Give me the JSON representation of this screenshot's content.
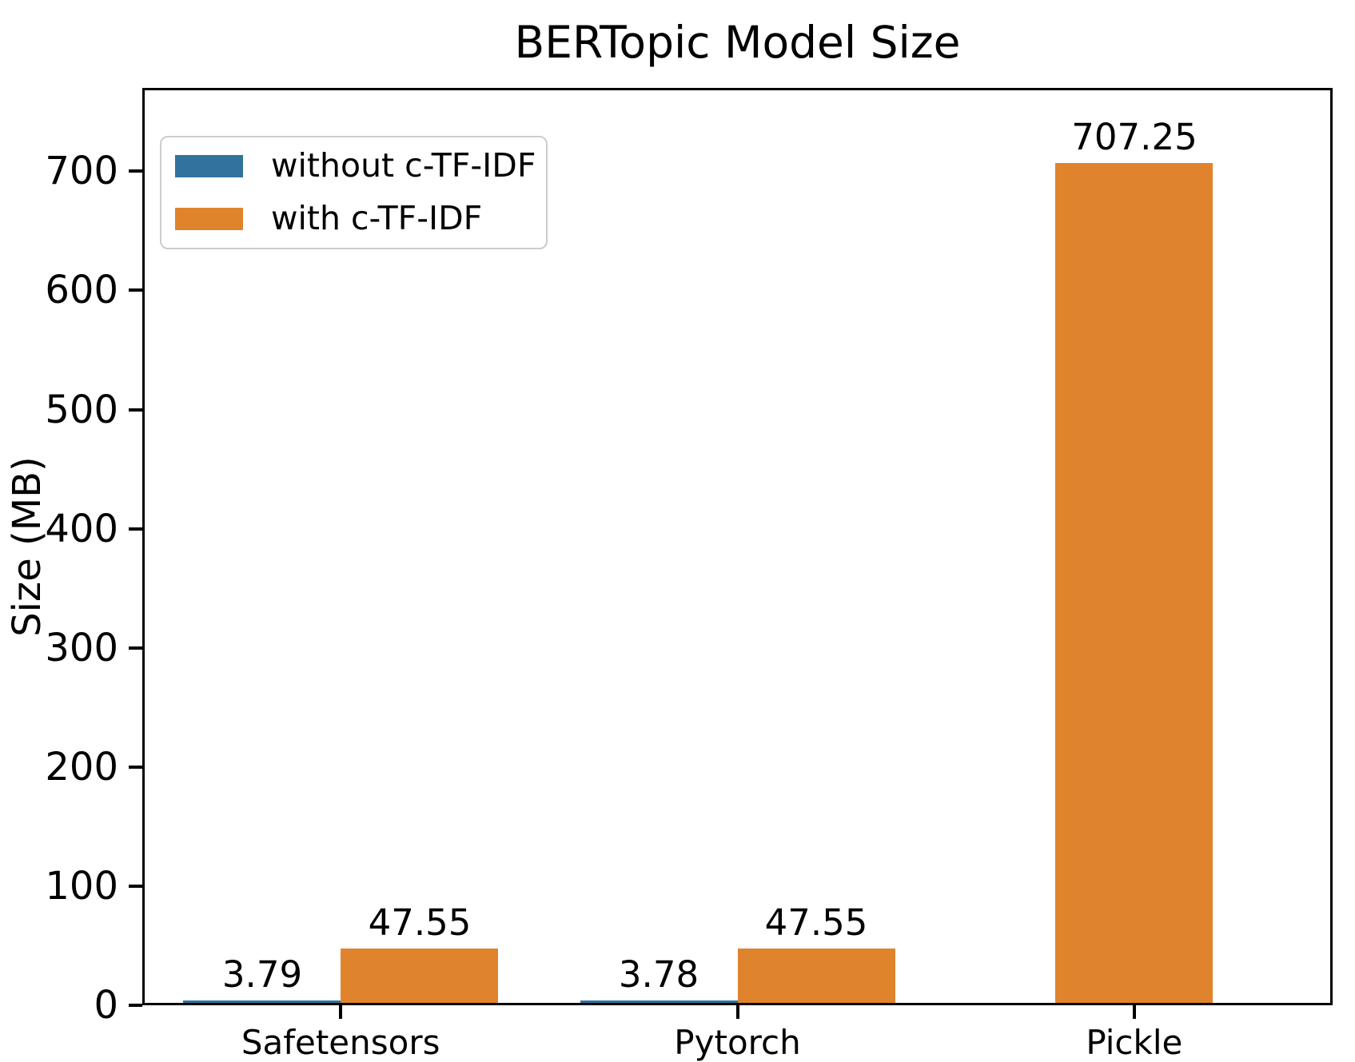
{
  "chart_data": {
    "type": "bar",
    "title": "BERTopic Model Size",
    "xlabel": "",
    "ylabel": "Size (MB)",
    "categories": [
      "Safetensors",
      "Pytorch",
      "Pickle"
    ],
    "series": [
      {
        "name": "without c-TF-IDF",
        "color": "#31739E",
        "values": [
          3.79,
          3.78,
          null
        ],
        "labels": [
          "3.79",
          "3.78",
          null
        ]
      },
      {
        "name": "with c-TF-IDF",
        "color": "#E0832D",
        "values": [
          47.55,
          47.55,
          707.25
        ],
        "labels": [
          "47.55",
          "47.55",
          "707.25"
        ]
      }
    ],
    "yticks": [
      0,
      100,
      200,
      300,
      400,
      500,
      600,
      700
    ],
    "ylim": [
      0,
      770
    ],
    "grid": false,
    "legend_position": "upper-left",
    "value_labels_shown": true,
    "colors": {
      "axis": "#000000",
      "legend_border": "#cccccc",
      "background": "#ffffff"
    }
  }
}
